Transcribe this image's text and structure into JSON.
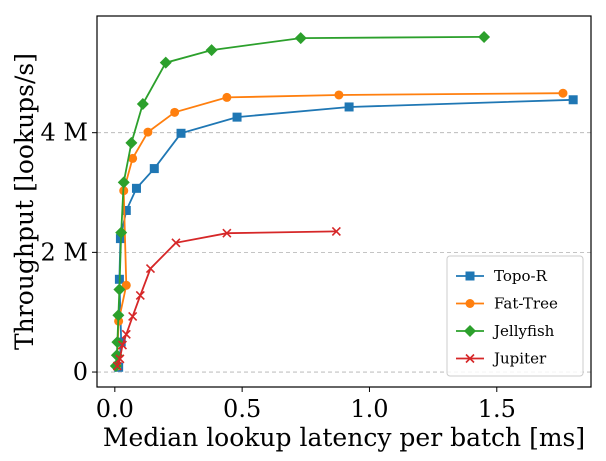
{
  "chart_data": {
    "type": "line",
    "title": "",
    "xlabel": "Median lookup latency per batch [ms]",
    "ylabel": "Throughput [lookups/s]",
    "xlim": [
      -0.07,
      1.87
    ],
    "ylim": [
      -0.25,
      5.95
    ],
    "x_ticks": [
      {
        "value": 0.0,
        "label": "0.0"
      },
      {
        "value": 0.5,
        "label": "0.5"
      },
      {
        "value": 1.0,
        "label": "1.0"
      },
      {
        "value": 1.5,
        "label": "1.5"
      }
    ],
    "y_ticks": [
      {
        "value": 0,
        "label": "0"
      },
      {
        "value": 2,
        "label": "2 M"
      },
      {
        "value": 4,
        "label": "4 M"
      }
    ],
    "y_unit": "millions of lookups/s",
    "grid": {
      "y": true,
      "x": false,
      "style": "dashed"
    },
    "legend": {
      "position": "lower-right"
    },
    "series": [
      {
        "name": "Topo-R",
        "color": "#1f77b4",
        "marker": "square",
        "points": [
          [
            0.015,
            0.08
          ],
          [
            0.025,
            0.5
          ],
          [
            0.018,
            1.55
          ],
          [
            0.022,
            2.23
          ],
          [
            0.045,
            2.7
          ],
          [
            0.085,
            3.07
          ],
          [
            0.155,
            3.4
          ],
          [
            0.26,
            3.99
          ],
          [
            0.48,
            4.26
          ],
          [
            0.92,
            4.43
          ],
          [
            1.8,
            4.55
          ]
        ]
      },
      {
        "name": "Fat-Tree",
        "color": "#ff7f0e",
        "marker": "circle",
        "points": [
          [
            0.008,
            0.1
          ],
          [
            0.015,
            0.85
          ],
          [
            0.045,
            1.45
          ],
          [
            0.035,
            3.03
          ],
          [
            0.07,
            3.57
          ],
          [
            0.13,
            4.01
          ],
          [
            0.235,
            4.34
          ],
          [
            0.44,
            4.59
          ],
          [
            0.88,
            4.63
          ],
          [
            1.76,
            4.66
          ]
        ]
      },
      {
        "name": "Jellyfish",
        "color": "#2ca02c",
        "marker": "diamond",
        "points": [
          [
            0.004,
            0.1
          ],
          [
            0.008,
            0.28
          ],
          [
            0.01,
            0.5
          ],
          [
            0.014,
            0.95
          ],
          [
            0.018,
            1.38
          ],
          [
            0.025,
            2.33
          ],
          [
            0.035,
            3.17
          ],
          [
            0.065,
            3.83
          ],
          [
            0.11,
            4.48
          ],
          [
            0.2,
            5.17
          ],
          [
            0.38,
            5.38
          ],
          [
            0.73,
            5.58
          ],
          [
            1.45,
            5.6
          ]
        ]
      },
      {
        "name": "Jupiter",
        "color": "#d62728",
        "marker": "x",
        "points": [
          [
            0.01,
            0.1
          ],
          [
            0.02,
            0.22
          ],
          [
            0.03,
            0.45
          ],
          [
            0.045,
            0.63
          ],
          [
            0.07,
            0.93
          ],
          [
            0.1,
            1.28
          ],
          [
            0.14,
            1.73
          ],
          [
            0.24,
            2.16
          ],
          [
            0.44,
            2.32
          ],
          [
            0.87,
            2.35
          ]
        ]
      }
    ]
  }
}
